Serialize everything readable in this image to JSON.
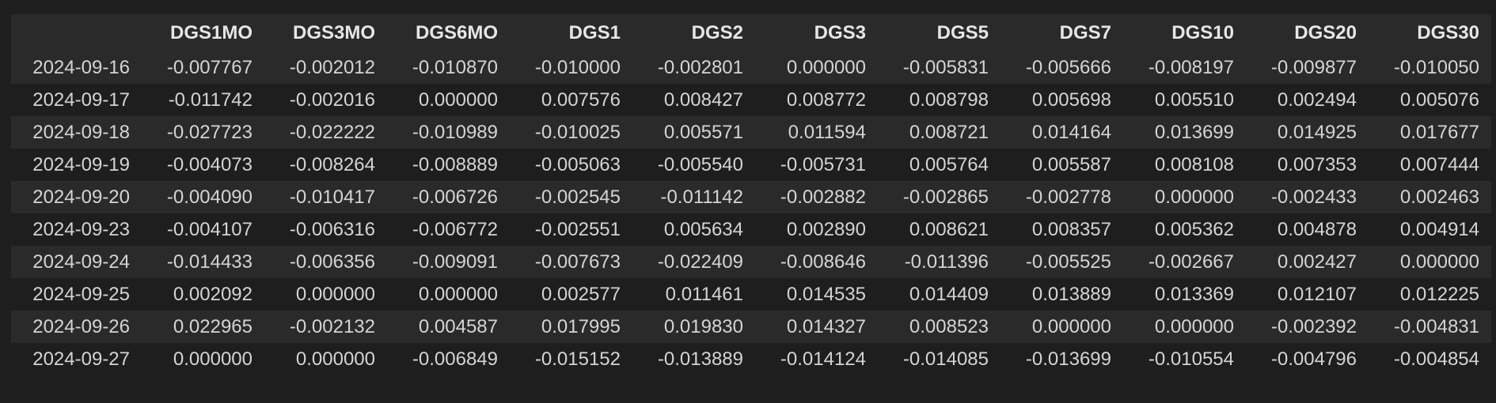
{
  "table": {
    "index_header": "",
    "columns": [
      "DGS1MO",
      "DGS3MO",
      "DGS6MO",
      "DGS1",
      "DGS2",
      "DGS3",
      "DGS5",
      "DGS7",
      "DGS10",
      "DGS20",
      "DGS30"
    ],
    "rows": [
      {
        "index": "2024-09-16",
        "values": [
          "-0.007767",
          "-0.002012",
          "-0.010870",
          "-0.010000",
          "-0.002801",
          "0.000000",
          "-0.005831",
          "-0.005666",
          "-0.008197",
          "-0.009877",
          "-0.010050"
        ]
      },
      {
        "index": "2024-09-17",
        "values": [
          "-0.011742",
          "-0.002016",
          "0.000000",
          "0.007576",
          "0.008427",
          "0.008772",
          "0.008798",
          "0.005698",
          "0.005510",
          "0.002494",
          "0.005076"
        ]
      },
      {
        "index": "2024-09-18",
        "values": [
          "-0.027723",
          "-0.022222",
          "-0.010989",
          "-0.010025",
          "0.005571",
          "0.011594",
          "0.008721",
          "0.014164",
          "0.013699",
          "0.014925",
          "0.017677"
        ]
      },
      {
        "index": "2024-09-19",
        "values": [
          "-0.004073",
          "-0.008264",
          "-0.008889",
          "-0.005063",
          "-0.005540",
          "-0.005731",
          "0.005764",
          "0.005587",
          "0.008108",
          "0.007353",
          "0.007444"
        ]
      },
      {
        "index": "2024-09-20",
        "values": [
          "-0.004090",
          "-0.010417",
          "-0.006726",
          "-0.002545",
          "-0.011142",
          "-0.002882",
          "-0.002865",
          "-0.002778",
          "0.000000",
          "-0.002433",
          "0.002463"
        ]
      },
      {
        "index": "2024-09-23",
        "values": [
          "-0.004107",
          "-0.006316",
          "-0.006772",
          "-0.002551",
          "0.005634",
          "0.002890",
          "0.008621",
          "0.008357",
          "0.005362",
          "0.004878",
          "0.004914"
        ]
      },
      {
        "index": "2024-09-24",
        "values": [
          "-0.014433",
          "-0.006356",
          "-0.009091",
          "-0.007673",
          "-0.022409",
          "-0.008646",
          "-0.011396",
          "-0.005525",
          "-0.002667",
          "0.002427",
          "0.000000"
        ]
      },
      {
        "index": "2024-09-25",
        "values": [
          "0.002092",
          "0.000000",
          "0.000000",
          "0.002577",
          "0.011461",
          "0.014535",
          "0.014409",
          "0.013889",
          "0.013369",
          "0.012107",
          "0.012225"
        ]
      },
      {
        "index": "2024-09-26",
        "values": [
          "0.022965",
          "-0.002132",
          "0.004587",
          "0.017995",
          "0.019830",
          "0.014327",
          "0.008523",
          "0.000000",
          "0.000000",
          "-0.002392",
          "-0.004831"
        ]
      },
      {
        "index": "2024-09-27",
        "values": [
          "0.000000",
          "0.000000",
          "-0.006849",
          "-0.015152",
          "-0.013889",
          "-0.014124",
          "-0.014085",
          "-0.013699",
          "-0.010554",
          "-0.004796",
          "-0.004854"
        ]
      }
    ]
  }
}
